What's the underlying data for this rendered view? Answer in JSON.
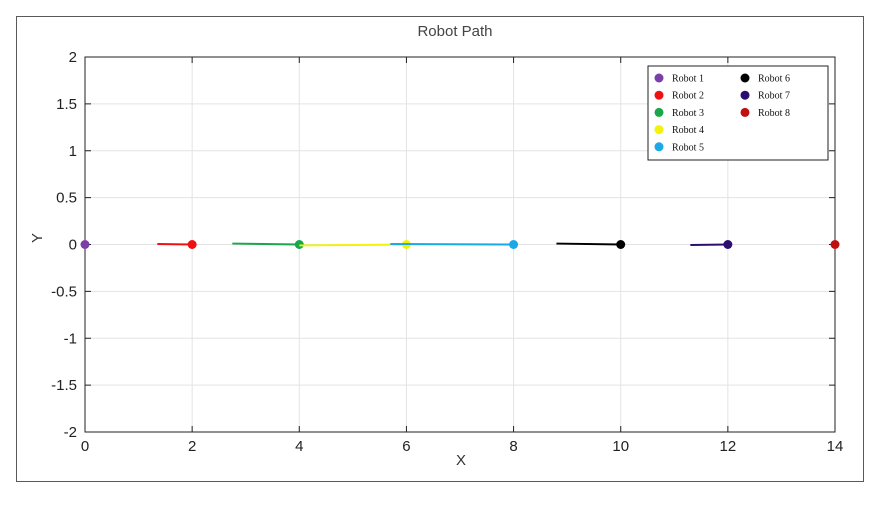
{
  "chart_data": {
    "type": "line",
    "title": "Robot Path",
    "xlabel": "X",
    "ylabel": "Y",
    "xlim": [
      0,
      14
    ],
    "ylim": [
      -2,
      2
    ],
    "xticks": [
      0,
      2,
      4,
      6,
      8,
      10,
      12,
      14
    ],
    "yticks": [
      2,
      1.5,
      1,
      0.5,
      0,
      -0.5,
      -1,
      -1.5,
      -2
    ],
    "xtick_labels": [
      "0",
      "2",
      "4",
      "6",
      "8",
      "10",
      "12",
      "14"
    ],
    "ytick_labels": [
      "2",
      "1.5",
      "1",
      "0.5",
      "0",
      "-0.5",
      "-1",
      "-1.5",
      "-2"
    ],
    "grid": true,
    "legend_position": "top-right",
    "series": [
      {
        "name": "Robot 1",
        "color": "#7b3fa8",
        "path": [
          [
            0,
            0
          ],
          [
            0,
            0
          ]
        ],
        "marker": [
          0,
          0
        ]
      },
      {
        "name": "Robot 2",
        "color": "#ee1111",
        "path": [
          [
            1.35,
            0.005
          ],
          [
            2,
            0
          ]
        ],
        "marker": [
          2,
          0
        ]
      },
      {
        "name": "Robot 3",
        "color": "#1aa64a",
        "path": [
          [
            2.75,
            0.01
          ],
          [
            4,
            0
          ]
        ],
        "marker": [
          4,
          0
        ]
      },
      {
        "name": "Robot 4",
        "color": "#f2f20a",
        "path": [
          [
            4,
            -0.01
          ],
          [
            6,
            0
          ]
        ],
        "marker": [
          6,
          0
        ]
      },
      {
        "name": "Robot 5",
        "color": "#1aa8e6",
        "path": [
          [
            5.7,
            0.005
          ],
          [
            8,
            0
          ]
        ],
        "marker": [
          8,
          0
        ]
      },
      {
        "name": "Robot 6",
        "color": "#000000",
        "path": [
          [
            8.8,
            0.01
          ],
          [
            10,
            0
          ]
        ],
        "marker": [
          10,
          0
        ]
      },
      {
        "name": "Robot 7",
        "color": "#2a0f6e",
        "path": [
          [
            11.3,
            -0.005
          ],
          [
            12,
            0
          ]
        ],
        "marker": [
          12,
          0
        ]
      },
      {
        "name": "Robot 8",
        "color": "#c01010",
        "path": [
          [
            14,
            0
          ],
          [
            14,
            0
          ]
        ],
        "marker": [
          14,
          0
        ]
      }
    ]
  }
}
